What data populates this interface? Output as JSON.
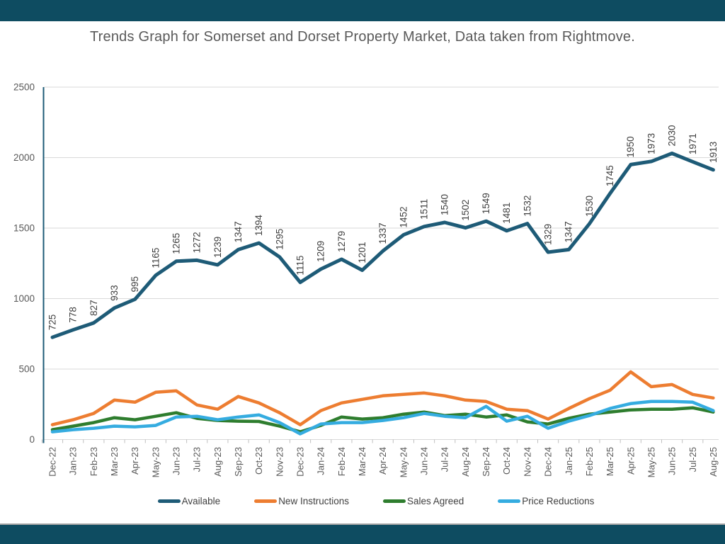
{
  "page": {
    "banner_color": "#0E4C61"
  },
  "chart_data": {
    "type": "line",
    "title": "Trends Graph for Somerset and Dorset Property Market, Data taken from Rightmove.",
    "xlabel": "",
    "ylabel": "",
    "ylim": [
      0,
      2500
    ],
    "yticks": [
      0,
      500,
      1000,
      1500,
      2000,
      2500
    ],
    "grid": "horizontal",
    "legend_position": "bottom",
    "x_label_rotation": -90,
    "data_label_rotation": -90,
    "colors": {
      "gridline": "#D9D9D9",
      "tick": "#BFBFBF",
      "axis_line": "#1E5B77",
      "axis_text": "#595959",
      "data_label_text": "#404040"
    },
    "categories": [
      "Dec-22",
      "Jan-23",
      "Feb-23",
      "Mar-23",
      "Apr-23",
      "May-23",
      "Jun-23",
      "Jul-23",
      "Aug-23",
      "Sep-23",
      "Oct-23",
      "Nov-23",
      "Dec-23",
      "Jan-24",
      "Feb-24",
      "Mar-24",
      "Apr-24",
      "May-24",
      "Jun-24",
      "Jul-24",
      "Aug-24",
      "Sep-24",
      "Oct-24",
      "Nov-24",
      "Dec-24",
      "Jan-25",
      "Feb-25",
      "Mar-25",
      "Apr-25",
      "May-25",
      "Jun-25",
      "Jul-25",
      "Aug-25"
    ],
    "series": [
      {
        "name": "Available",
        "color": "#1E5B77",
        "show_data_labels": true,
        "values": [
          725,
          778,
          827,
          933,
          995,
          1165,
          1265,
          1272,
          1239,
          1347,
          1394,
          1295,
          1115,
          1209,
          1279,
          1201,
          1337,
          1452,
          1511,
          1540,
          1502,
          1549,
          1481,
          1532,
          1329,
          1347,
          1530,
          1745,
          1950,
          1973,
          2030,
          1971,
          1913
        ]
      },
      {
        "name": "New Instructions",
        "color": "#ED7D31",
        "show_data_labels": false,
        "values": [
          105,
          140,
          185,
          280,
          265,
          335,
          345,
          245,
          215,
          305,
          260,
          190,
          105,
          205,
          260,
          285,
          310,
          320,
          330,
          310,
          280,
          270,
          215,
          205,
          145,
          220,
          290,
          350,
          480,
          375,
          390,
          320,
          295
        ]
      },
      {
        "name": "Sales Agreed",
        "color": "#2E7D2E",
        "show_data_labels": false,
        "values": [
          70,
          95,
          120,
          155,
          140,
          165,
          190,
          150,
          135,
          130,
          128,
          95,
          55,
          100,
          160,
          145,
          155,
          180,
          195,
          170,
          180,
          160,
          175,
          125,
          110,
          150,
          180,
          195,
          210,
          215,
          215,
          225,
          195
        ]
      },
      {
        "name": "Price Reductions",
        "color": "#35ACE0",
        "show_data_labels": false,
        "values": [
          55,
          70,
          80,
          95,
          90,
          100,
          160,
          165,
          140,
          160,
          175,
          120,
          40,
          110,
          120,
          120,
          135,
          155,
          185,
          165,
          155,
          235,
          130,
          165,
          80,
          130,
          170,
          220,
          255,
          270,
          270,
          265,
          205
        ]
      }
    ]
  }
}
